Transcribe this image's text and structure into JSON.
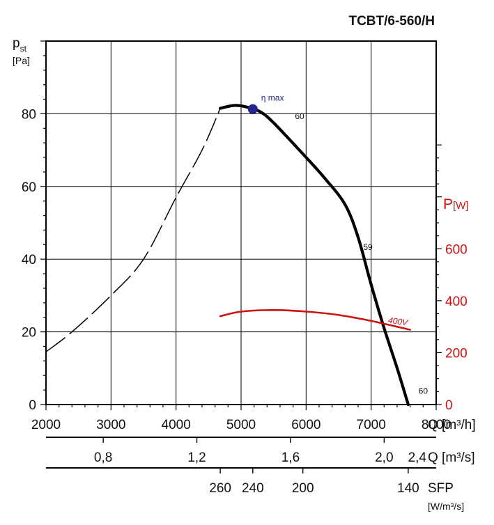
{
  "chart_data": {
    "type": "line",
    "title": "TCBT/6-560/H",
    "colors": {
      "pressure": "#000000",
      "power": "#cc1111",
      "max_point": "#24248c",
      "grid": "#000000"
    },
    "grid": true,
    "x_axis": {
      "label": "Q [m³/h]",
      "range": [
        2000,
        8000
      ],
      "ticks": [
        "2000",
        "3000",
        "4000",
        "5000",
        "6000",
        "7000",
        "8000"
      ]
    },
    "y_axis_left": {
      "label_main": "p",
      "label_sub": "st",
      "unit": "[Pa]",
      "range": [
        0,
        100
      ],
      "ticks": [
        "0",
        "20",
        "40",
        "60",
        "80"
      ]
    },
    "y_axis_right": {
      "label_main": "P",
      "unit": "[W]",
      "range": [
        0,
        1400
      ],
      "ticks": [
        "0",
        "200",
        "400",
        "600"
      ]
    },
    "secondary_axes": [
      {
        "label": "Q [m³/s]",
        "ticks": [
          {
            "label": "0,8",
            "q_m3h": 2880
          },
          {
            "label": "1,2",
            "q_m3h": 4320
          },
          {
            "label": "1,6",
            "q_m3h": 5760
          },
          {
            "label": "2,0",
            "q_m3h": 7200
          },
          {
            "label": "2,4",
            "q_m3h": 8640
          }
        ]
      },
      {
        "label": "SFP",
        "unit": "[W/m³/s]",
        "ticks": [
          {
            "label": "260",
            "q_m3h": 4680
          },
          {
            "label": "240",
            "q_m3h": 5180
          },
          {
            "label": "200",
            "q_m3h": 5950
          },
          {
            "label": "140",
            "q_m3h": 7570
          }
        ]
      }
    ],
    "series": [
      {
        "axis": "left",
        "style": "dashed",
        "points": [
          [
            2000,
            14.5
          ],
          [
            2400,
            20
          ],
          [
            3000,
            30
          ],
          [
            3500,
            40
          ],
          [
            4000,
            57
          ],
          [
            4400,
            70
          ],
          [
            4680,
            81.5
          ]
        ]
      },
      {
        "axis": "left",
        "style": "solid",
        "points": [
          [
            4680,
            81.5
          ],
          [
            4900,
            82.3
          ],
          [
            5100,
            81.8
          ],
          [
            5300,
            80.5
          ],
          [
            5500,
            77.5
          ],
          [
            6000,
            68
          ],
          [
            6300,
            62
          ],
          [
            6600,
            55
          ],
          [
            6800,
            46
          ],
          [
            7000,
            33
          ],
          [
            7200,
            21
          ],
          [
            7400,
            10
          ],
          [
            7570,
            0
          ]
        ]
      },
      {
        "name": "400V",
        "axis": "right",
        "style": "solid",
        "points": [
          [
            4680,
            340
          ],
          [
            5000,
            358
          ],
          [
            5500,
            364
          ],
          [
            6000,
            358
          ],
          [
            6500,
            345
          ],
          [
            7000,
            322
          ],
          [
            7600,
            288
          ]
        ]
      }
    ],
    "max_point": {
      "label": "η max",
      "q": 5180,
      "p": 81.3
    },
    "annotations": [
      {
        "text": "60",
        "q": 5900,
        "p": 78.5
      },
      {
        "text": "59",
        "q": 6950,
        "p": 42.5
      },
      {
        "text": "60",
        "q": 7800,
        "p": 3
      }
    ]
  }
}
